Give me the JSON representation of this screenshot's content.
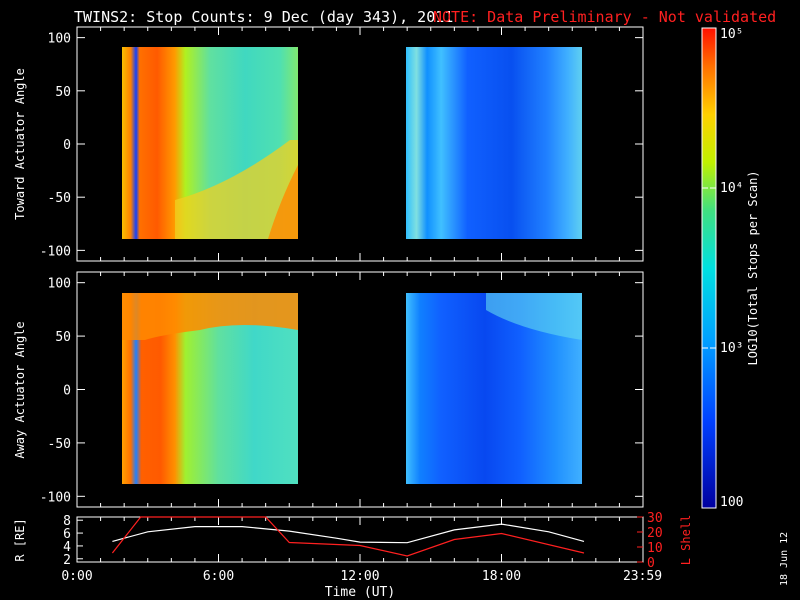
{
  "header": {
    "title": "TWINS2: Stop Counts:  9 Dec (day 343), 2011",
    "note": "NOTE: Data Preliminary - Not validated"
  },
  "stamp": "18 Jun 12",
  "colorbar": {
    "label": "LOG10(Total Stops per Scan)",
    "tick_labels": [
      "100",
      "10³",
      "10⁴",
      "10⁵"
    ],
    "tick_values": [
      100,
      1000,
      10000,
      100000
    ],
    "range": [
      100,
      100000
    ],
    "scale": "log"
  },
  "chart_data": [
    {
      "type": "heatmap",
      "panel": "toward",
      "ylabel": "Toward Actuator Angle",
      "xlim": [
        0,
        24
      ],
      "ylim": [
        -110,
        110
      ],
      "yticks": [
        -100,
        -50,
        0,
        50,
        100
      ],
      "data_blocks_hours": [
        [
          1.6,
          9.2
        ],
        [
          14.0,
          21.6
        ]
      ],
      "angle_range": [
        -90,
        90
      ],
      "description": "dusk block dominated by high counts (1e4-1e5) near start; second block low counts (~1e2-1e3)"
    },
    {
      "type": "heatmap",
      "panel": "away",
      "ylabel": "Away Actuator Angle",
      "xlim": [
        0,
        24
      ],
      "ylim": [
        -110,
        110
      ],
      "yticks": [
        -100,
        -50,
        0,
        50,
        100
      ],
      "data_blocks_hours": [
        [
          1.6,
          9.2
        ],
        [
          14.0,
          21.6
        ]
      ],
      "angle_range": [
        -90,
        90
      ]
    },
    {
      "type": "line",
      "panel": "orbit",
      "ylabel_left": "R [RE]",
      "ylabel_right": "L Shell",
      "xlabel": "Time (UT)",
      "xlim": [
        0,
        24
      ],
      "ylim_left": [
        1.5,
        8.5
      ],
      "ylim_right": [
        0,
        30
      ],
      "yticks_left": [
        2,
        4,
        6,
        8
      ],
      "yticks_right": [
        0,
        10,
        20,
        30
      ],
      "xtick_labels": [
        "0:00",
        "6:00",
        "12:00",
        "18:00",
        "23:59"
      ],
      "xtick_values": [
        0,
        6,
        12,
        18,
        23.98
      ],
      "series": [
        {
          "name": "R [RE]",
          "color": "#ffffff",
          "x": [
            1.5,
            3,
            5,
            7,
            9,
            11,
            12,
            14,
            16,
            18,
            20,
            21.5
          ],
          "y": [
            4.7,
            6.2,
            7.0,
            7.0,
            6.3,
            5.2,
            4.6,
            4.5,
            6.5,
            7.4,
            6.2,
            4.7
          ]
        },
        {
          "name": "L Shell",
          "color": "#ff2020",
          "x": [
            1.5,
            2.7,
            8.0,
            9.0,
            12.0,
            14.0,
            16.0,
            18.0,
            21.5
          ],
          "y": [
            6,
            30,
            30,
            13,
            11,
            4,
            15,
            19,
            6
          ]
        }
      ]
    }
  ]
}
